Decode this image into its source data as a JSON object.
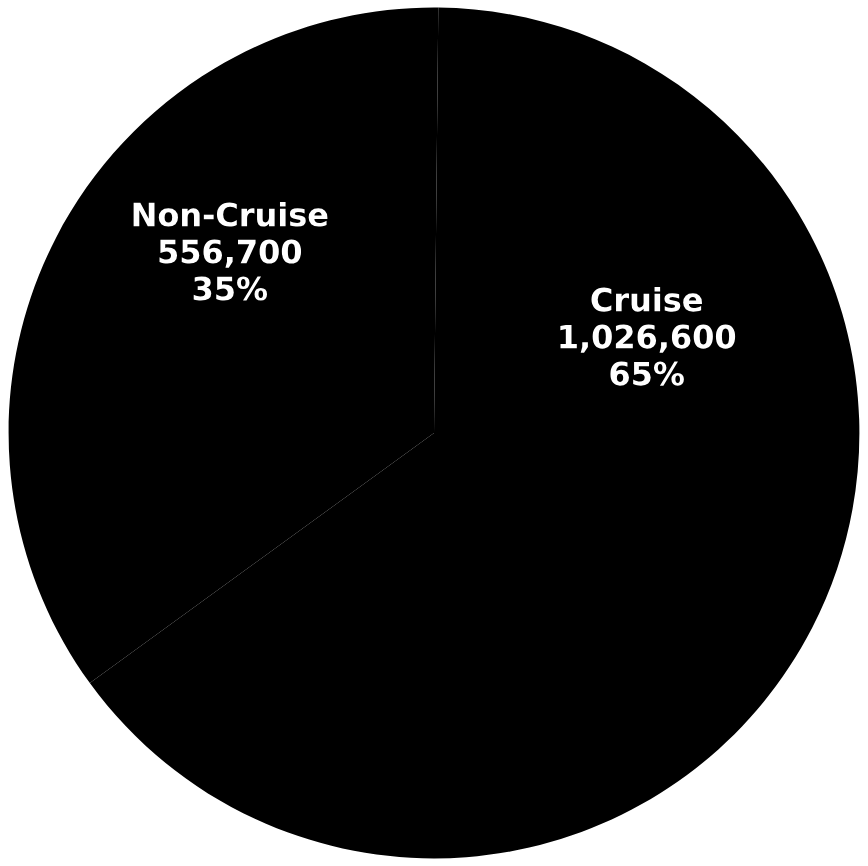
{
  "chart_data": {
    "type": "pie",
    "categories": [
      "Non-Cruise",
      "Cruise"
    ],
    "values": [
      556700,
      1026600
    ],
    "value_labels": [
      "556,700\n35%",
      "1,026,600\n65%"
    ],
    "colors": [
      "#000000",
      "#000000"
    ]
  }
}
